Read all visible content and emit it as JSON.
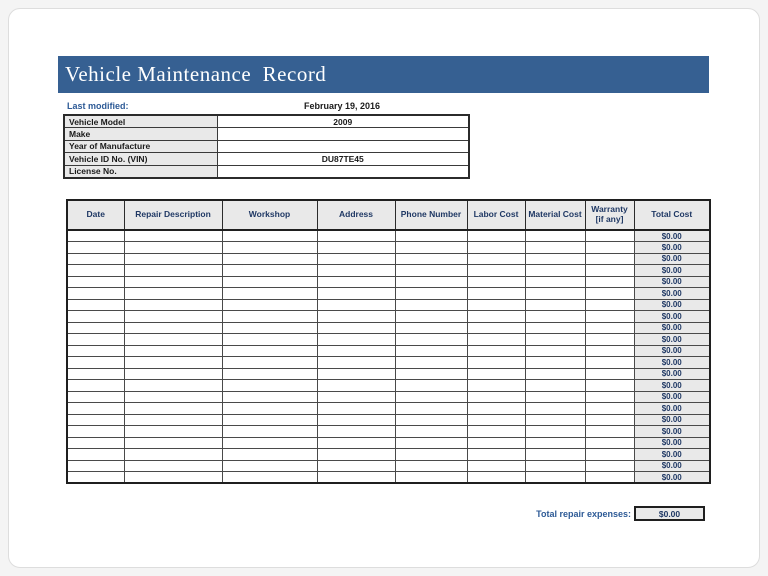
{
  "banner": {
    "title": "Vehicle Maintenance  Record"
  },
  "info": {
    "last_modified_label": "Last modified:",
    "last_modified_value": "February 19, 2016",
    "rows": [
      {
        "label": "Vehicle Model",
        "value": "2009"
      },
      {
        "label": "Make",
        "value": ""
      },
      {
        "label": "Year of Manufacture",
        "value": ""
      },
      {
        "label": "Vehicle ID No. (VIN)",
        "value": "DU87TE45"
      },
      {
        "label": "License No.",
        "value": ""
      }
    ]
  },
  "table": {
    "columns": [
      "Date",
      "Repair Description",
      "Workshop",
      "Address",
      "Phone Number",
      "Labor Cost",
      "Material Cost",
      "Warranty [if any]",
      "Total Cost"
    ],
    "row_count": 22,
    "row_total_value": "$0.00",
    "footer": {
      "label": "Total repair expenses:",
      "value": "$0.00"
    }
  },
  "colors": {
    "banner_blue": "#366092",
    "header_text_navy": "#1f3864",
    "accent_blue": "#2d5a96",
    "cell_shade_gray": "#e9e9e9"
  }
}
